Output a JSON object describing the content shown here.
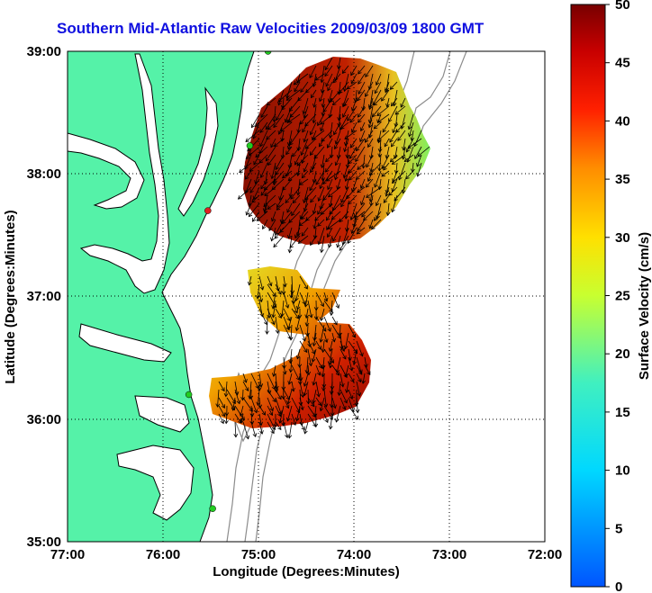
{
  "title": "Southern Mid-Atlantic Raw Velocities 2009/03/09 1800 GMT",
  "map": {
    "xlabel": "Longitude (Degrees:Minutes)",
    "ylabel": "Latitude (Degrees:Minutes)",
    "x_ticks": [
      "77:00",
      "76:00",
      "75:00",
      "74:00",
      "73:00",
      "72:00"
    ],
    "y_ticks": [
      "39:00",
      "38:00",
      "37:00",
      "36:00",
      "35:00"
    ],
    "lon_range": [
      -77,
      -72
    ],
    "lat_range": [
      35,
      39
    ],
    "land_color": "#55f2a8",
    "grid": "dotted"
  },
  "colorbar": {
    "label": "Surface Velocity (cm/s)",
    "ticks": [
      "50",
      "45",
      "40",
      "35",
      "30",
      "25",
      "20",
      "15",
      "10",
      "5",
      "0"
    ],
    "range": [
      0,
      50
    ],
    "colormap": "jet"
  },
  "stations": [
    {
      "lon": -74.9,
      "lat": 39.0,
      "color": "#22cc22"
    },
    {
      "lon": -75.09,
      "lat": 38.23,
      "color": "#22cc22"
    },
    {
      "lon": -75.53,
      "lat": 37.7,
      "color": "#e02020"
    },
    {
      "lon": -75.73,
      "lat": 36.2,
      "color": "#22cc22"
    },
    {
      "lon": -75.48,
      "lat": 35.27,
      "color": "#22cc22"
    }
  ]
}
